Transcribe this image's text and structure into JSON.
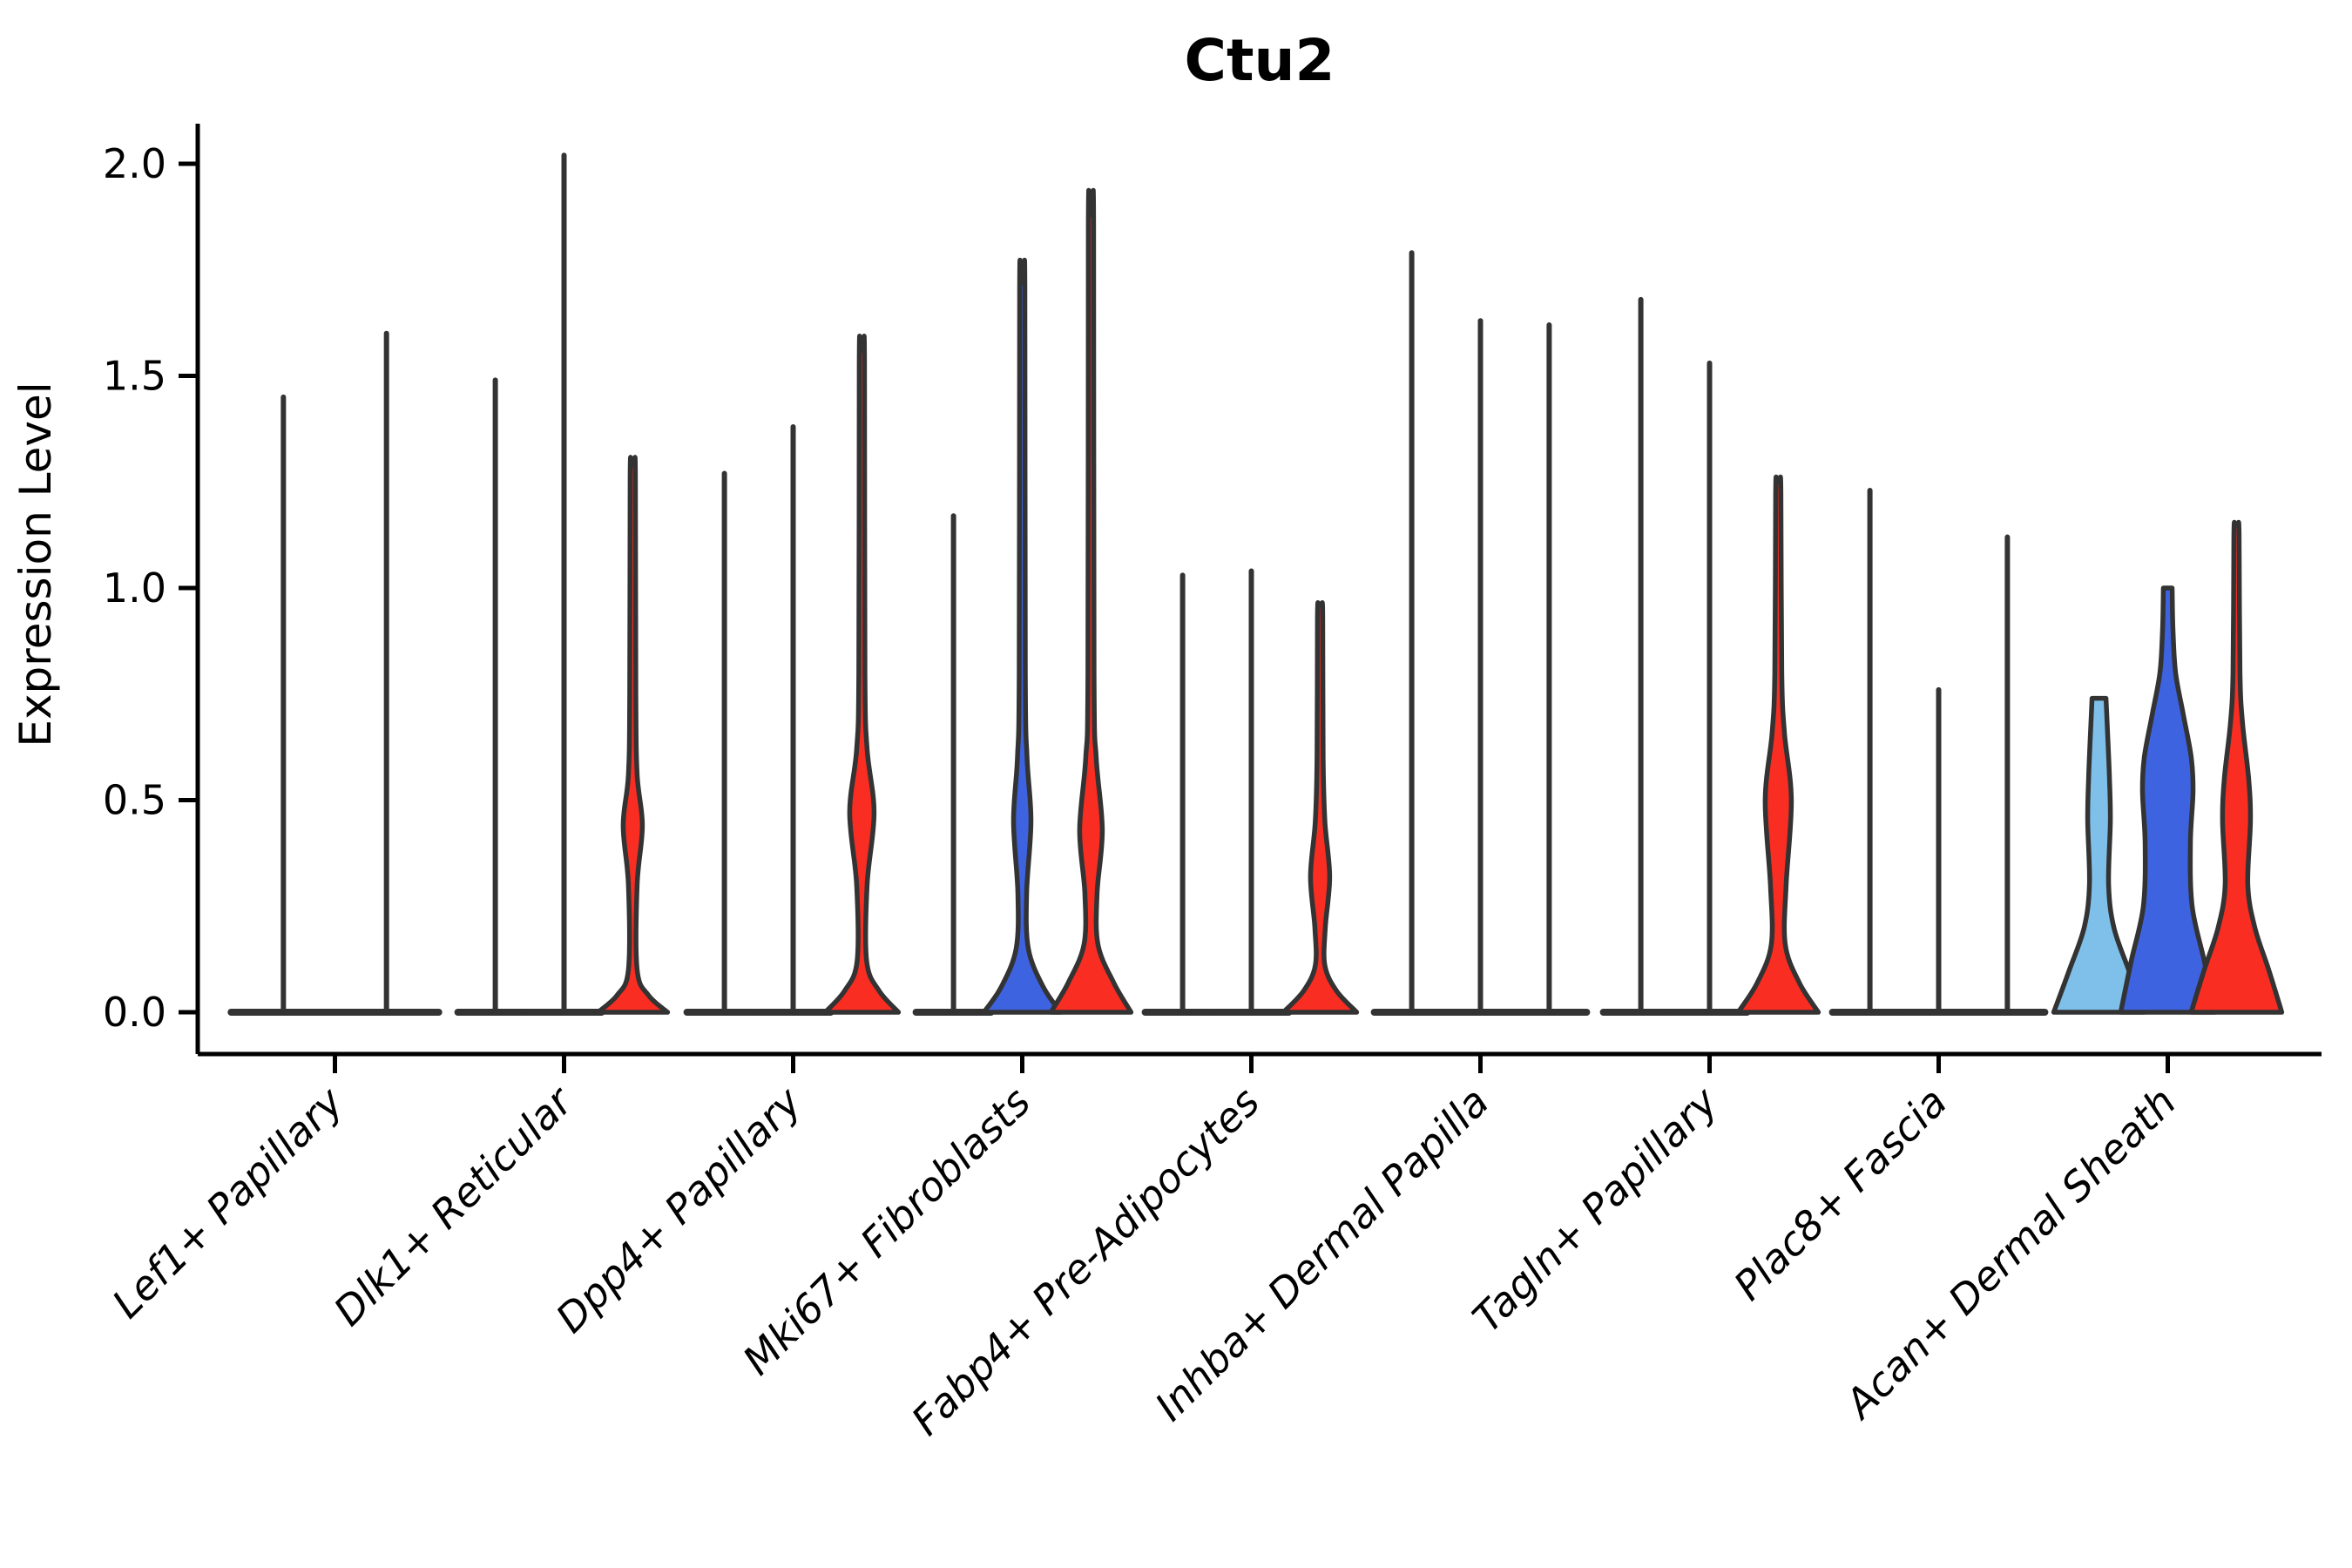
{
  "chart_data": {
    "type": "violin",
    "title": "Ctu2",
    "xlabel": "",
    "ylabel": "Expression Level",
    "yticks": [
      0.0,
      0.5,
      1.0,
      1.5,
      2.0
    ],
    "ytick_labels": [
      "0.0",
      "0.5",
      "1.0",
      "1.5",
      "2.0"
    ],
    "ylim": [
      -0.1,
      2.09
    ],
    "grid": false,
    "legend_position": "none",
    "split_levels": 3,
    "split_colors": [
      "#7EC0EA",
      "#3E63E0",
      "#FA2D23"
    ],
    "outline_color": "#333333",
    "categories": [
      "Lef1+ Papillary",
      "Dlk1+ Reticular",
      "Dpp4+ Papillary",
      "Mki67+ Fibroblasts",
      "Fabp4+ Pre-Adipocytes",
      "Inhba+ Dermal Papilla",
      "Tagln+ Papillary",
      "Plac8+ Fascia",
      "Acan+ Dermal Sheath"
    ],
    "groups": [
      {
        "category": "Lef1+ Papillary",
        "violins": [
          {
            "split": 0,
            "kind": "spike",
            "max": 1.45,
            "offset": -0.225,
            "base_halfwidth": 60
          },
          {
            "split": 2,
            "kind": "spike",
            "max": 1.6,
            "offset": 0.225,
            "base_halfwidth": 60
          }
        ]
      },
      {
        "category": "Dlk1+ Reticular",
        "violins": [
          {
            "split": 0,
            "kind": "spike",
            "max": 1.49,
            "offset": -0.3,
            "base_halfwidth": 43
          },
          {
            "split": 1,
            "kind": "spike",
            "max": 2.02,
            "offset": 0.0,
            "base_halfwidth": 43
          },
          {
            "split": 2,
            "kind": "violin",
            "max": 1.29,
            "offset": 0.3,
            "capped": false,
            "profile": [
              [
                0,
                40
              ],
              [
                0.04,
                18
              ],
              [
                0.1,
                5
              ],
              [
                0.3,
                5
              ],
              [
                0.44,
                11
              ],
              [
                0.56,
                5
              ],
              [
                0.75,
                3.5
              ],
              [
                1.26,
                3
              ],
              [
                1.29,
                2
              ]
            ]
          }
        ]
      },
      {
        "category": "Dpp4+ Papillary",
        "violins": [
          {
            "split": 0,
            "kind": "spike",
            "max": 1.27,
            "offset": -0.3,
            "base_halfwidth": 43
          },
          {
            "split": 1,
            "kind": "spike",
            "max": 1.38,
            "offset": 0.0,
            "base_halfwidth": 43
          },
          {
            "split": 2,
            "kind": "violin",
            "max": 1.56,
            "offset": 0.3,
            "capped": false,
            "profile": [
              [
                0,
                42
              ],
              [
                0.05,
                20
              ],
              [
                0.12,
                5.5
              ],
              [
                0.3,
                6
              ],
              [
                0.47,
                14
              ],
              [
                0.62,
                6
              ],
              [
                0.8,
                3.5
              ],
              [
                1.53,
                3
              ],
              [
                1.56,
                2
              ]
            ]
          }
        ]
      },
      {
        "category": "Mki67+ Fibroblasts",
        "violins": [
          {
            "split": 0,
            "kind": "spike",
            "max": 1.17,
            "offset": -0.3,
            "base_halfwidth": 43
          },
          {
            "split": 1,
            "kind": "violin",
            "max": 1.72,
            "offset": 0.0,
            "capped": false,
            "profile": [
              [
                0,
                44
              ],
              [
                0.06,
                24
              ],
              [
                0.15,
                7
              ],
              [
                0.28,
                5
              ],
              [
                0.45,
                10
              ],
              [
                0.6,
                5.5
              ],
              [
                0.8,
                3.5
              ],
              [
                1.7,
                3
              ],
              [
                1.72,
                2
              ]
            ]
          },
          {
            "split": 2,
            "kind": "violin",
            "max": 1.88,
            "offset": 0.3,
            "capped": false,
            "profile": [
              [
                0,
                46
              ],
              [
                0.07,
                26
              ],
              [
                0.16,
                8
              ],
              [
                0.28,
                7
              ],
              [
                0.43,
                13
              ],
              [
                0.6,
                6
              ],
              [
                0.8,
                3.5
              ],
              [
                1.85,
                3
              ],
              [
                1.88,
                2
              ]
            ]
          }
        ]
      },
      {
        "category": "Fabp4+ Pre-Adipocytes",
        "violins": [
          {
            "split": 0,
            "kind": "spike",
            "max": 1.03,
            "offset": -0.3,
            "base_halfwidth": 43
          },
          {
            "split": 1,
            "kind": "spike",
            "max": 1.04,
            "offset": 0.0,
            "base_halfwidth": 43
          },
          {
            "split": 2,
            "kind": "violin",
            "max": 0.96,
            "offset": 0.3,
            "capped": false,
            "profile": [
              [
                0,
                42
              ],
              [
                0.05,
                19
              ],
              [
                0.11,
                5.5
              ],
              [
                0.2,
                6
              ],
              [
                0.32,
                11
              ],
              [
                0.45,
                5.5
              ],
              [
                0.6,
                3.5
              ],
              [
                0.93,
                3
              ],
              [
                0.96,
                2
              ]
            ]
          }
        ]
      },
      {
        "category": "Inhba+ Dermal Papilla",
        "violins": [
          {
            "split": 0,
            "kind": "spike",
            "max": 1.79,
            "offset": -0.3,
            "base_halfwidth": 43
          },
          {
            "split": 1,
            "kind": "spike",
            "max": 1.63,
            "offset": 0.0,
            "base_halfwidth": 43
          },
          {
            "split": 2,
            "kind": "spike",
            "max": 1.62,
            "offset": 0.3,
            "base_halfwidth": 43
          }
        ]
      },
      {
        "category": "Tagln+ Papillary",
        "violins": [
          {
            "split": 0,
            "kind": "spike",
            "max": 1.68,
            "offset": -0.3,
            "base_halfwidth": 43
          },
          {
            "split": 1,
            "kind": "spike",
            "max": 1.53,
            "offset": 0.0,
            "base_halfwidth": 43
          },
          {
            "split": 2,
            "kind": "violin",
            "max": 1.25,
            "offset": 0.3,
            "capped": false,
            "profile": [
              [
                0,
                46
              ],
              [
                0.07,
                24
              ],
              [
                0.16,
                8
              ],
              [
                0.3,
                9
              ],
              [
                0.5,
                15
              ],
              [
                0.66,
                7
              ],
              [
                0.8,
                4
              ],
              [
                1.22,
                3
              ],
              [
                1.25,
                2
              ]
            ]
          }
        ]
      },
      {
        "category": "Plac8+ Fascia",
        "violins": [
          {
            "split": 0,
            "kind": "spike",
            "max": 1.23,
            "offset": -0.3,
            "base_halfwidth": 43
          },
          {
            "split": 1,
            "kind": "spike",
            "max": 0.76,
            "offset": 0.0,
            "base_halfwidth": 43
          },
          {
            "split": 2,
            "kind": "spike",
            "max": 1.12,
            "offset": 0.3,
            "base_halfwidth": 43
          }
        ]
      },
      {
        "category": "Acan+ Dermal Sheath",
        "violins": [
          {
            "split": 0,
            "kind": "violin",
            "max": 0.74,
            "offset": -0.3,
            "capped": true,
            "profile": [
              [
                0,
                52
              ],
              [
                0.1,
                34
              ],
              [
                0.2,
                17
              ],
              [
                0.3,
                11
              ],
              [
                0.45,
                13
              ],
              [
                0.55,
                12
              ],
              [
                0.65,
                10
              ],
              [
                0.74,
                8
              ]
            ]
          },
          {
            "split": 1,
            "kind": "violin",
            "max": 1.0,
            "offset": 0.0,
            "capped": true,
            "profile": [
              [
                0,
                54
              ],
              [
                0.12,
                42
              ],
              [
                0.25,
                28
              ],
              [
                0.4,
                26
              ],
              [
                0.52,
                29
              ],
              [
                0.6,
                27
              ],
              [
                0.7,
                18
              ],
              [
                0.8,
                9
              ],
              [
                0.9,
                6
              ],
              [
                1.0,
                5
              ]
            ]
          },
          {
            "split": 2,
            "kind": "violin",
            "max": 1.15,
            "offset": 0.3,
            "capped": false,
            "profile": [
              [
                0,
                52
              ],
              [
                0.1,
                37
              ],
              [
                0.2,
                21
              ],
              [
                0.3,
                13
              ],
              [
                0.45,
                16
              ],
              [
                0.55,
                14
              ],
              [
                0.68,
                7
              ],
              [
                0.8,
                4
              ],
              [
                1.12,
                3
              ],
              [
                1.15,
                2
              ]
            ]
          }
        ]
      }
    ]
  }
}
